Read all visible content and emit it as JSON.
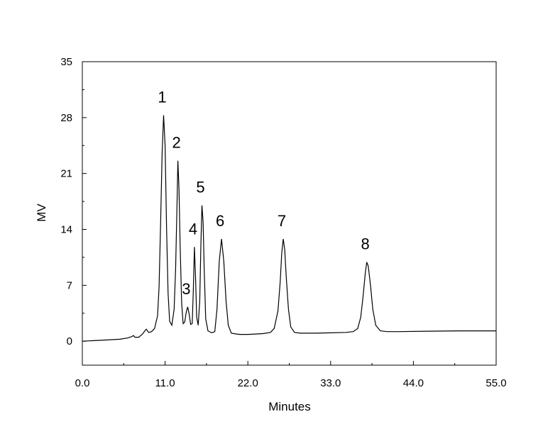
{
  "chart_data": {
    "type": "line",
    "title": "",
    "xlabel": "Minutes",
    "ylabel": "MV",
    "xlim": [
      0,
      55
    ],
    "ylim": [
      -3,
      35
    ],
    "x_ticks": [
      "0.0",
      "11.0",
      "22.0",
      "33.0",
      "44.0",
      "55.0"
    ],
    "x_tick_values": [
      0,
      11,
      22,
      33,
      44,
      55
    ],
    "y_ticks": [
      "0",
      "7",
      "14",
      "21",
      "28",
      "35"
    ],
    "y_tick_values": [
      0,
      7,
      14,
      21,
      28,
      35
    ],
    "grid": false,
    "legend": "none",
    "peaks": [
      {
        "label": "1",
        "x": 10.8,
        "y": 28.3
      },
      {
        "label": "2",
        "x": 12.7,
        "y": 22.6
      },
      {
        "label": "3",
        "x": 14.0,
        "y": 4.3
      },
      {
        "label": "4",
        "x": 14.9,
        "y": 11.8
      },
      {
        "label": "5",
        "x": 15.9,
        "y": 17.0
      },
      {
        "label": "6",
        "x": 18.5,
        "y": 12.8
      },
      {
        "label": "7",
        "x": 26.7,
        "y": 12.8
      },
      {
        "label": "8",
        "x": 37.8,
        "y": 9.9
      }
    ],
    "series": [
      {
        "x": [
          0,
          2,
          4,
          5,
          6,
          6.5,
          6.8,
          7.0,
          7.5,
          8.0,
          8.3,
          8.5,
          8.8,
          9.2,
          9.6,
          10.0,
          10.2,
          10.4,
          10.6,
          10.8,
          11.0,
          11.2,
          11.4,
          11.6,
          11.9,
          12.2,
          12.4,
          12.6,
          12.7,
          12.85,
          13.0,
          13.2,
          13.4,
          13.6,
          13.8,
          14.0,
          14.2,
          14.4,
          14.6,
          14.75,
          14.9,
          15.05,
          15.2,
          15.4,
          15.6,
          15.75,
          15.9,
          16.05,
          16.2,
          16.4,
          16.7,
          17.2,
          17.6,
          17.9,
          18.2,
          18.5,
          18.8,
          19.1,
          19.4,
          19.8,
          20.5,
          21,
          22,
          23,
          24,
          25,
          25.5,
          26.0,
          26.3,
          26.5,
          26.7,
          26.9,
          27.1,
          27.4,
          27.7,
          28.2,
          29,
          31,
          33,
          35,
          36,
          36.6,
          37.0,
          37.3,
          37.6,
          37.8,
          38.0,
          38.3,
          38.6,
          39.0,
          39.6,
          40.5,
          42,
          46,
          50,
          55
        ],
        "y": [
          0,
          0.1,
          0.2,
          0.25,
          0.4,
          0.55,
          0.7,
          0.5,
          0.5,
          0.9,
          1.3,
          1.5,
          1.1,
          1.2,
          1.6,
          3.2,
          6.8,
          14.5,
          23.5,
          28.3,
          24.5,
          14.0,
          6.0,
          2.5,
          2.0,
          4.0,
          9.0,
          18.0,
          22.6,
          19.0,
          12.0,
          4.8,
          2.2,
          2.4,
          3.6,
          4.3,
          3.4,
          2.1,
          2.2,
          6.5,
          11.8,
          8.0,
          3.0,
          2.0,
          5.0,
          12.0,
          17.0,
          15.0,
          9.0,
          2.8,
          1.3,
          1.05,
          1.2,
          4.0,
          10.0,
          12.8,
          10.0,
          5.0,
          2.0,
          1.0,
          0.9,
          0.85,
          0.85,
          0.9,
          0.95,
          1.1,
          1.6,
          3.8,
          7.5,
          11.0,
          12.8,
          11.5,
          8.0,
          4.0,
          1.8,
          1.1,
          1.0,
          1.0,
          1.05,
          1.1,
          1.2,
          1.6,
          3.0,
          5.5,
          8.5,
          9.9,
          9.4,
          7.0,
          4.0,
          2.0,
          1.3,
          1.2,
          1.2,
          1.25,
          1.3,
          1.3
        ]
      }
    ]
  }
}
